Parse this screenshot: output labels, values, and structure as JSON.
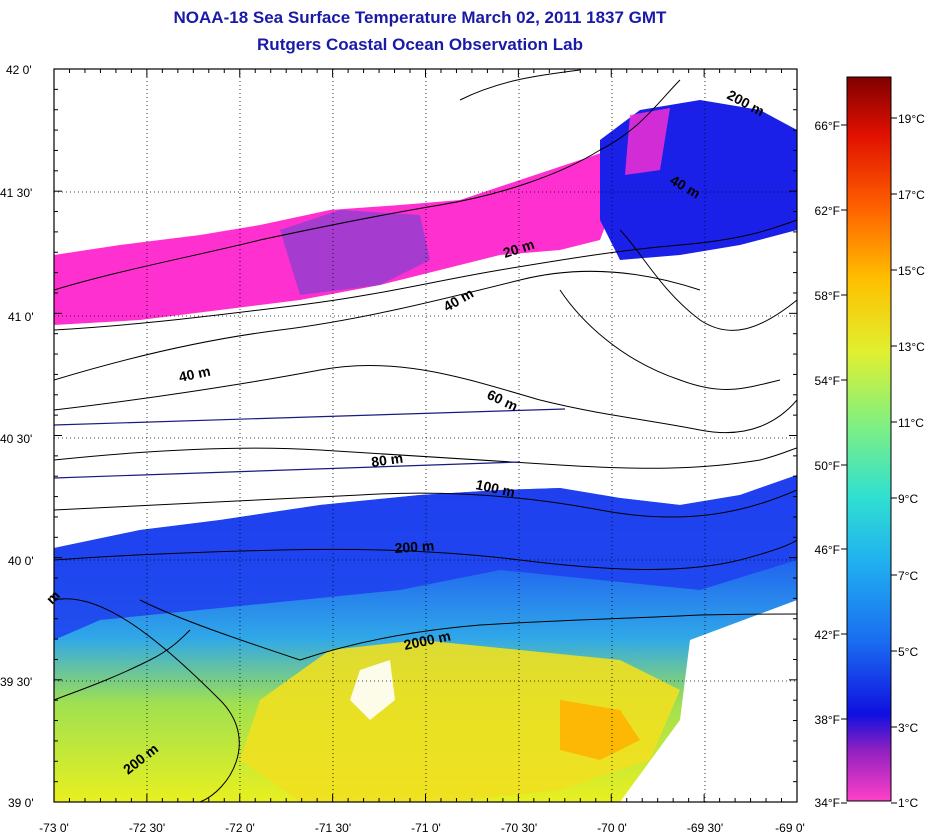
{
  "title": "NOAA-18 Sea Surface Temperature March 02, 2011 1837 GMT",
  "subtitle": "Rutgers Coastal Ocean Observation Lab",
  "map": {
    "lat_labels": [
      "42 0'",
      "41 30'",
      "41 0'",
      "40 30'",
      "40 0'",
      "39 30'",
      "39 0'"
    ],
    "lon_labels": [
      "-73 0'",
      "-72 30'",
      "-72 0'",
      "-71 30'",
      "-71 0'",
      "-70 30'",
      "-70 0'",
      "-69 30'",
      "-69 0'"
    ],
    "contour_labels": [
      {
        "text": "200 m",
        "id": "c200-ne"
      },
      {
        "text": "40 m",
        "id": "c40-ne"
      },
      {
        "text": "20 m",
        "id": "c20"
      },
      {
        "text": "40 m",
        "id": "c40-mid"
      },
      {
        "text": "40 m",
        "id": "c40-w"
      },
      {
        "text": "60 m",
        "id": "c60"
      },
      {
        "text": "80 m",
        "id": "c80"
      },
      {
        "text": "100 m",
        "id": "c100"
      },
      {
        "text": "200 m",
        "id": "c200-mid"
      },
      {
        "text": "m",
        "id": "cm-w"
      },
      {
        "text": "2000 m",
        "id": "c2000"
      },
      {
        "text": "200 m",
        "id": "c200-sw"
      }
    ]
  },
  "colorbar": {
    "fahrenheit_labels": [
      "66°F",
      "62°F",
      "58°F",
      "54°F",
      "50°F",
      "46°F",
      "42°F",
      "38°F",
      "34°F"
    ],
    "celsius_labels": [
      "19°C",
      "17°C",
      "15°C",
      "13°C",
      "11°C",
      "9°C",
      "7°C",
      "5°C",
      "3°C",
      "1°C"
    ],
    "colors": [
      "#ff40c8",
      "#8020c0",
      "#1010e0",
      "#1a6cf0",
      "#20b0f0",
      "#30e0d0",
      "#80f080",
      "#e0f030",
      "#ffc000",
      "#ff6000",
      "#e01000",
      "#800000"
    ]
  }
}
